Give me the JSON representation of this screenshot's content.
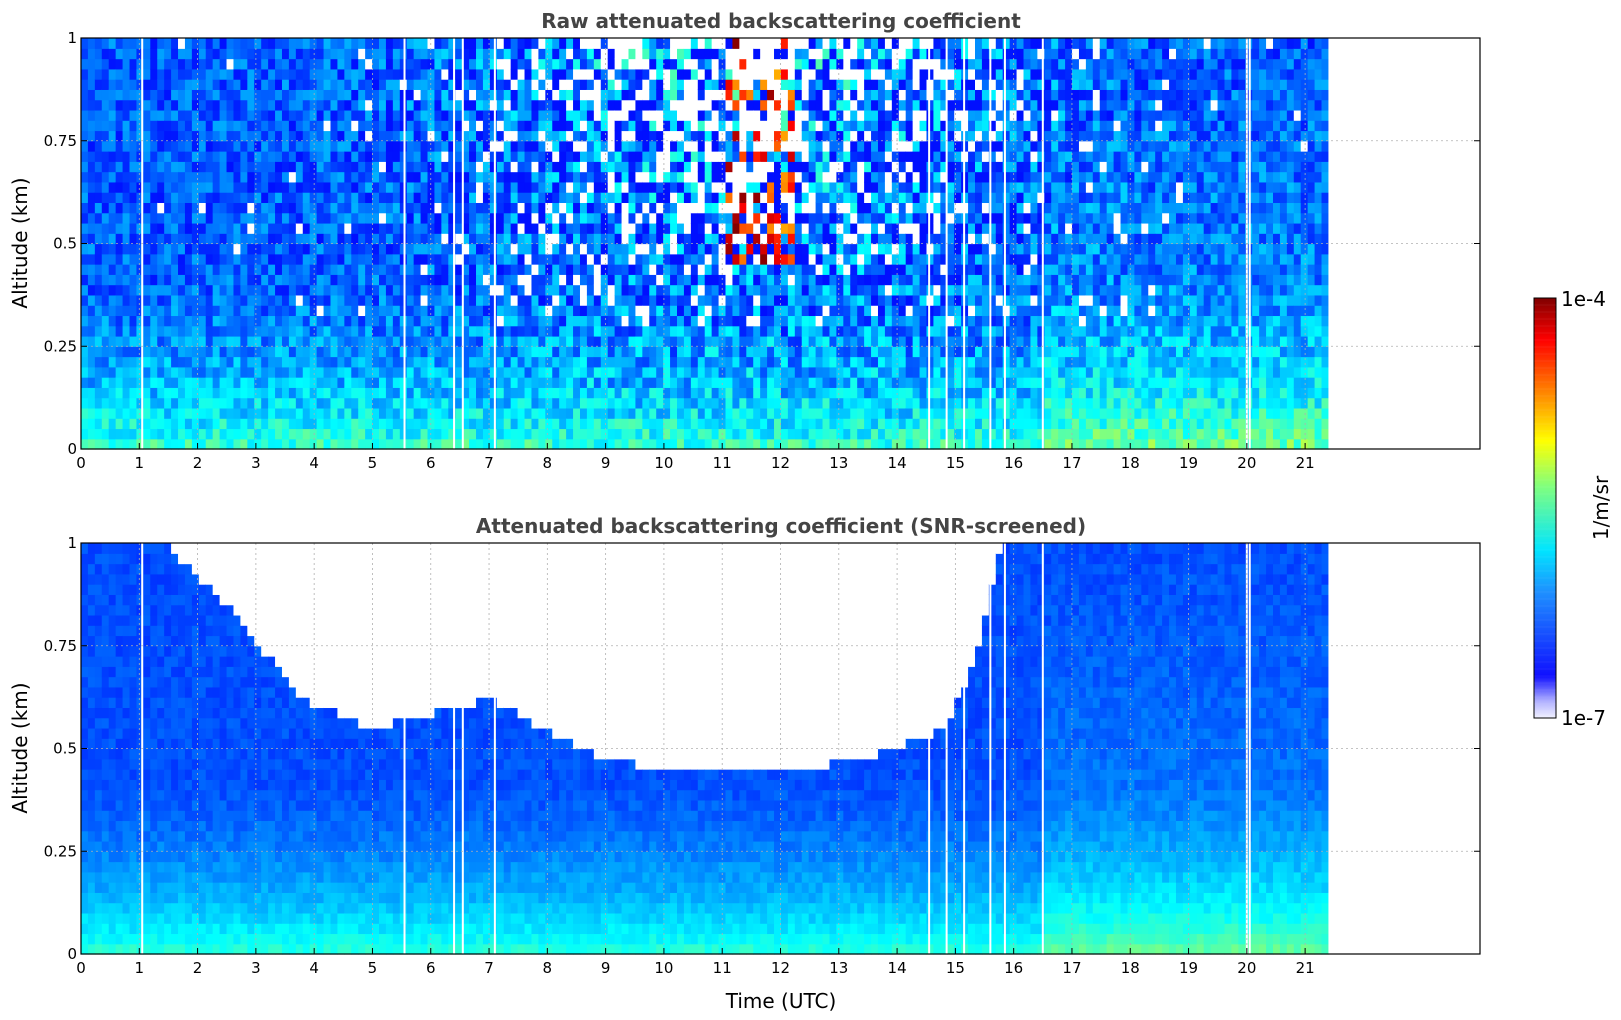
{
  "chart_data": [
    {
      "type": "heatmap",
      "title": "Raw attenuated backscattering coefficient",
      "xlabel": "",
      "ylabel": "Altitude (km)",
      "xlim": [
        0,
        24
      ],
      "ylim": [
        0,
        1
      ],
      "x_ticks": [
        "0",
        "1",
        "2",
        "3",
        "4",
        "5",
        "6",
        "7",
        "8",
        "9",
        "10",
        "11",
        "12",
        "13",
        "14",
        "15",
        "16",
        "17",
        "18",
        "19",
        "20",
        "21"
      ],
      "y_ticks": [
        "0",
        "0.25",
        "0.5",
        "0.75",
        "1"
      ],
      "data_end_hour": 21.4,
      "grid": true,
      "gaps_utc": [
        1.05,
        5.55,
        6.4,
        6.55,
        7.1,
        14.55,
        14.85,
        15.15,
        15.6,
        15.85,
        16.5,
        20.0,
        20.05
      ],
      "cloud_event": {
        "time_range_utc": [
          11.0,
          12.3
        ],
        "altitude_range_km": [
          0.45,
          1.0
        ]
      }
    },
    {
      "type": "heatmap",
      "title": "Attenuated backscattering coefficient (SNR-screened)",
      "xlabel": "Time (UTC)",
      "ylabel": "Altitude (km)",
      "xlim": [
        0,
        24
      ],
      "ylim": [
        0,
        1
      ],
      "x_ticks": [
        "0",
        "1",
        "2",
        "3",
        "4",
        "5",
        "6",
        "7",
        "8",
        "9",
        "10",
        "11",
        "12",
        "13",
        "14",
        "15",
        "16",
        "17",
        "18",
        "19",
        "20",
        "21"
      ],
      "y_ticks": [
        "0",
        "0.25",
        "0.5",
        "0.75",
        "1"
      ],
      "data_end_hour": 21.4,
      "grid": true,
      "gaps_utc": [
        1.05,
        5.55,
        6.4,
        6.55,
        7.1,
        14.55,
        14.85,
        15.15,
        15.6,
        15.85,
        16.5,
        20.0,
        20.05
      ],
      "screened_top_km": [
        [
          1.4,
          1.0
        ],
        [
          2.5,
          0.85
        ],
        [
          3.8,
          0.62
        ],
        [
          5.0,
          0.55
        ],
        [
          7.0,
          0.62
        ],
        [
          9.0,
          0.47
        ],
        [
          10.5,
          0.45
        ],
        [
          12.0,
          0.44
        ],
        [
          13.5,
          0.48
        ],
        [
          14.8,
          0.55
        ],
        [
          15.3,
          0.7
        ],
        [
          15.8,
          1.0
        ]
      ]
    }
  ],
  "colorbar": {
    "label": "1/m/sr",
    "max_label": "1e-4",
    "min_label": "1e-7",
    "scale": "log",
    "range": [
      1e-07,
      0.0001
    ],
    "colormap": "jet"
  }
}
